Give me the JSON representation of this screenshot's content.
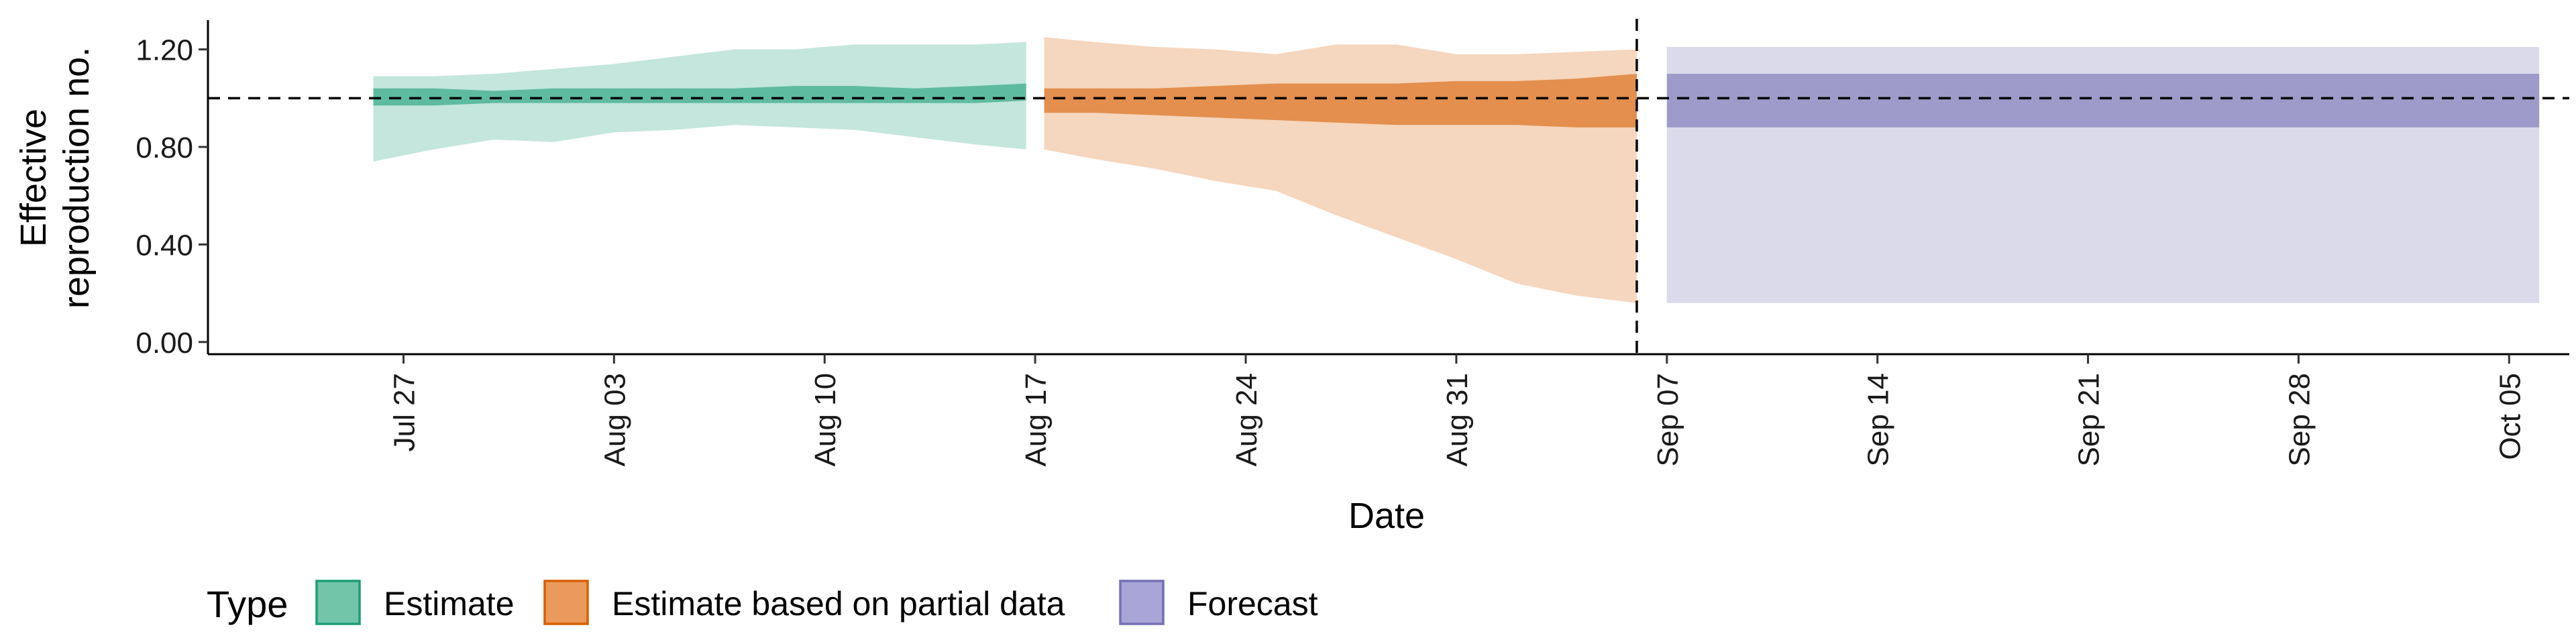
{
  "chart_data": {
    "type": "area",
    "xlabel": "Date",
    "ylabel_line1": "Effective",
    "ylabel_line2": "reproduction no.",
    "ylim": [
      -0.05,
      1.32
    ],
    "y_ticks": [
      0.0,
      0.4,
      0.8,
      1.2
    ],
    "y_tick_labels": [
      "0.00",
      "0.40",
      "0.80",
      "1.20"
    ],
    "x_range_days": [
      -6.5,
      72
    ],
    "x_ticks_day": [
      0,
      7,
      14,
      21,
      28,
      35,
      42,
      49,
      56,
      63,
      70
    ],
    "x_tick_labels": [
      "Jul 27",
      "Aug 03",
      "Aug 10",
      "Aug 17",
      "Aug 24",
      "Aug 31",
      "Sep 07",
      "Sep 14",
      "Sep 21",
      "Sep 28",
      "Oct 05"
    ],
    "reference_hline": 1.0,
    "reference_vline_day": 41,
    "legend_title": "Type",
    "series": [
      {
        "name": "Estimate",
        "color": "#1b9e77",
        "days": [
          -1,
          1,
          3,
          5,
          7,
          9,
          11,
          13,
          15,
          17,
          19,
          20.7
        ],
        "outer_upper": [
          1.09,
          1.09,
          1.1,
          1.12,
          1.14,
          1.17,
          1.2,
          1.2,
          1.22,
          1.22,
          1.22,
          1.23
        ],
        "outer_lower": [
          0.74,
          0.79,
          0.83,
          0.82,
          0.86,
          0.87,
          0.89,
          0.88,
          0.87,
          0.84,
          0.81,
          0.79
        ],
        "inner_upper": [
          1.04,
          1.04,
          1.03,
          1.04,
          1.04,
          1.04,
          1.04,
          1.05,
          1.05,
          1.04,
          1.05,
          1.06
        ],
        "inner_lower": [
          0.97,
          0.97,
          0.98,
          0.98,
          0.98,
          0.98,
          0.98,
          0.98,
          0.98,
          0.98,
          0.98,
          0.99
        ]
      },
      {
        "name": "Estimate based on partial data",
        "color": "#d95f02",
        "days": [
          21.3,
          23,
          25,
          27,
          29,
          31,
          33,
          35,
          37,
          39,
          41
        ],
        "outer_upper": [
          1.25,
          1.23,
          1.21,
          1.2,
          1.18,
          1.22,
          1.22,
          1.18,
          1.18,
          1.19,
          1.2
        ],
        "outer_lower": [
          0.79,
          0.75,
          0.71,
          0.66,
          0.62,
          0.52,
          0.43,
          0.34,
          0.24,
          0.19,
          0.16
        ],
        "inner_upper": [
          1.04,
          1.04,
          1.04,
          1.05,
          1.06,
          1.06,
          1.06,
          1.07,
          1.07,
          1.08,
          1.1
        ],
        "inner_lower": [
          0.94,
          0.94,
          0.93,
          0.92,
          0.91,
          0.9,
          0.89,
          0.89,
          0.89,
          0.88,
          0.88
        ]
      },
      {
        "name": "Forecast",
        "color": "#7570b3",
        "days": [
          42,
          71
        ],
        "outer_upper": [
          1.21,
          1.21
        ],
        "outer_lower": [
          0.16,
          0.16
        ],
        "inner_upper": [
          1.1,
          1.1
        ],
        "inner_lower": [
          0.88,
          0.88
        ]
      }
    ],
    "legend": [
      {
        "label": "Estimate",
        "fill": "#73c5aa",
        "stroke": "#1b9e77"
      },
      {
        "label": "Estimate based on partial data",
        "fill": "#e99a5c",
        "stroke": "#d95f02"
      },
      {
        "label": "Forecast",
        "fill": "#a9a5d6",
        "stroke": "#7570b3"
      }
    ]
  }
}
